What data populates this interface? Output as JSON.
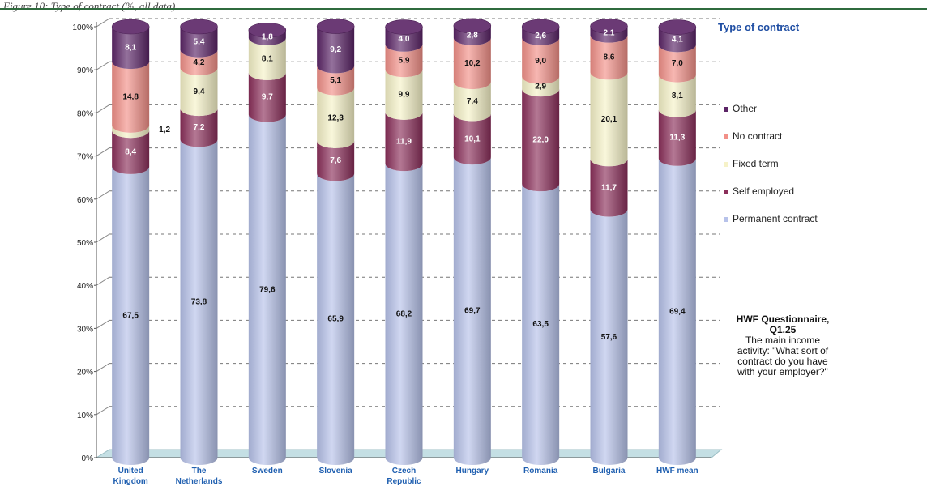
{
  "caption": "Figure 10: Type of contract (%, all data)",
  "chart_data": {
    "type": "bar",
    "stacked": true,
    "orientation": "vertical",
    "categories": [
      "United\nKingdom",
      "The\nNetherlands",
      "Sweden",
      "Slovenia",
      "Czech\nRepublic",
      "Hungary",
      "Romania",
      "Bulgaria",
      "HWF mean"
    ],
    "series": [
      {
        "name": "Permanent contract",
        "values": [
          67.5,
          73.8,
          79.6,
          65.9,
          68.2,
          69.7,
          63.5,
          57.6,
          69.4
        ],
        "labels": [
          "67,5",
          "73,8",
          "79,6",
          "65,9",
          "68,2",
          "69,7",
          "63,5",
          "57,6",
          "69,4"
        ],
        "color": "#b7c2ea"
      },
      {
        "name": "Self employed",
        "values": [
          8.4,
          7.2,
          9.7,
          7.6,
          11.9,
          10.1,
          22.0,
          11.7,
          11.3
        ],
        "labels": [
          "8,4",
          "7,2",
          "9,7",
          "7,6",
          "11,9",
          "10,1",
          "22,0",
          "11,7",
          "11,3"
        ],
        "color": "#8b2f5a"
      },
      {
        "name": "Fixed term",
        "values": [
          1.2,
          9.4,
          8.1,
          12.3,
          9.9,
          7.4,
          2.9,
          20.1,
          8.1
        ],
        "labels": [
          "1,2",
          "9,4",
          "8,1",
          "12,3",
          "9,9",
          "7,4",
          "2,9",
          "20,1",
          "8,1"
        ],
        "color": "#f6f2c8"
      },
      {
        "name": "No contract",
        "values": [
          14.8,
          4.2,
          0.0,
          5.1,
          5.9,
          10.2,
          9.0,
          8.6,
          7.0
        ],
        "labels": [
          "14,8",
          "4,2",
          "",
          "5,1",
          "5,9",
          "10,2",
          "9,0",
          "8,6",
          "7,0"
        ],
        "color": "#f29088"
      },
      {
        "name": "Other",
        "values": [
          8.1,
          5.4,
          1.8,
          9.2,
          4.0,
          2.8,
          2.6,
          2.1,
          4.1
        ],
        "labels": [
          "8,1",
          "5,4",
          "1,8",
          "9,2",
          "4,0",
          "2,8",
          "2,6",
          "2,1",
          "4,1"
        ],
        "color": "#5b2466"
      }
    ],
    "y_ticks": [
      "0%",
      "10%",
      "20%",
      "30%",
      "40%",
      "50%",
      "60%",
      "70%",
      "80%",
      "90%",
      "100%"
    ],
    "ylim": [
      0,
      100
    ],
    "grid": true,
    "legend_title": "Type of contract",
    "legend_order": [
      "Other",
      "No contract",
      "Fixed term",
      "Self employed",
      "Permanent contract"
    ],
    "legend_position": "right",
    "annotation": {
      "title": "HWF Questionnaire,\nQ1.25",
      "text": "The main income\nactivity: \"What sort of\ncontract do you have\nwith your employer?\""
    }
  }
}
